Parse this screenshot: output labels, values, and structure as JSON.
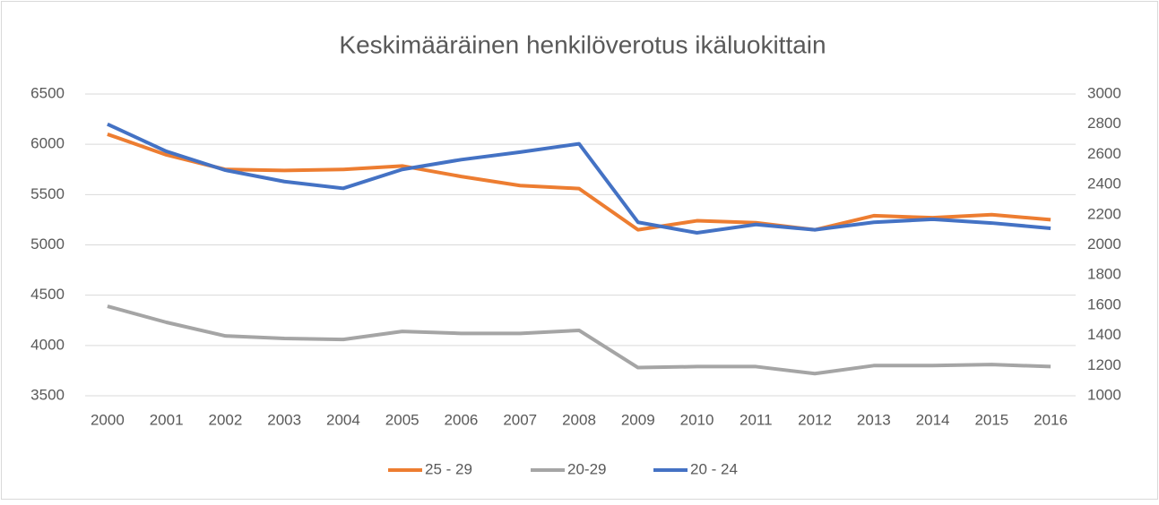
{
  "chart_data": {
    "type": "line",
    "title": "Keskimääräinen henkilöverotus ikäluokittain",
    "categories": [
      "2000",
      "2001",
      "2002",
      "2003",
      "2004",
      "2005",
      "2006",
      "2007",
      "2008",
      "2009",
      "2010",
      "2011",
      "2012",
      "2013",
      "2014",
      "2015",
      "2016"
    ],
    "series": [
      {
        "name": "25 - 29",
        "color": "#ed7d31",
        "values": [
          6100,
          5895,
          5750,
          5740,
          5750,
          5785,
          5680,
          5590,
          5560,
          5150,
          5240,
          5220,
          5150,
          5290,
          5270,
          5300,
          5250
        ]
      },
      {
        "name": "20-29",
        "color": "#a5a5a5",
        "values": [
          4390,
          4230,
          4095,
          4070,
          4060,
          4140,
          4120,
          4120,
          4150,
          3780,
          3790,
          3790,
          3720,
          3800,
          3800,
          3810,
          3790
        ]
      },
      {
        "name": "20 - 24",
        "color": "#4472c4",
        "axis": "y2",
        "values": [
          2800,
          2620,
          2495,
          2420,
          2375,
          2500,
          2565,
          2615,
          2670,
          2150,
          2080,
          2135,
          2100,
          2150,
          2170,
          2145,
          2110
        ]
      }
    ],
    "ylim": [
      3500,
      6500
    ],
    "yticks": [
      3500,
      4000,
      4500,
      5000,
      5500,
      6000,
      6500
    ],
    "y2lim": [
      1000,
      3000
    ],
    "y2ticks": [
      1000,
      1200,
      1400,
      1600,
      1800,
      2000,
      2200,
      2400,
      2600,
      2800,
      3000
    ],
    "grid": true,
    "legend": "bottom"
  }
}
